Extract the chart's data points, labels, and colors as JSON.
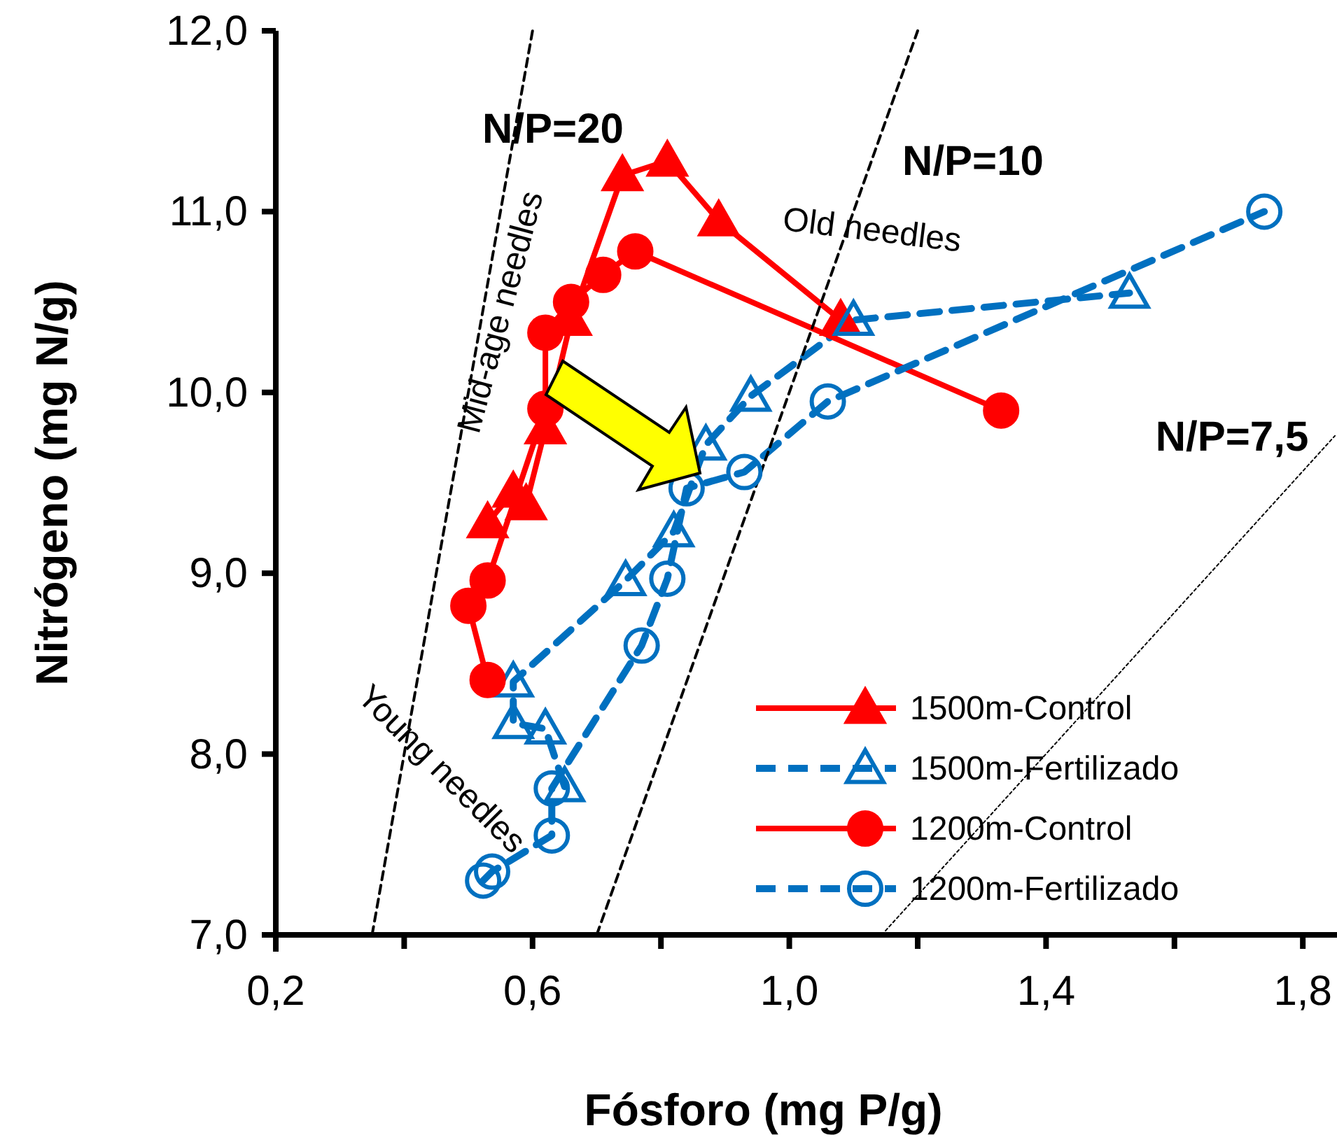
{
  "chart_data": {
    "type": "line",
    "xlabel": "Fósforo (mg P/g)",
    "ylabel": "Nitrógeno (mg N/g)",
    "xlim": [
      0.2,
      1.85
    ],
    "xticks": [
      {
        "value": 0.2,
        "label": "0,2"
      },
      {
        "value": 0.4,
        "label": null
      },
      {
        "value": 0.6,
        "label": "0,6"
      },
      {
        "value": 0.8,
        "label": null
      },
      {
        "value": 1.0,
        "label": "1,0"
      },
      {
        "value": 1.2,
        "label": null
      },
      {
        "value": 1.4,
        "label": "1,4"
      },
      {
        "value": 1.6,
        "label": null
      },
      {
        "value": 1.8,
        "label": "1,8"
      }
    ],
    "ylim": [
      7,
      12
    ],
    "yticks": [
      {
        "value": 7,
        "label": "7,0"
      },
      {
        "value": 8,
        "label": "8,0"
      },
      {
        "value": 9,
        "label": "9,0"
      },
      {
        "value": 10,
        "label": "10,0"
      },
      {
        "value": 11,
        "label": "11,0"
      },
      {
        "value": 12,
        "label": "12,0"
      }
    ],
    "grid": false,
    "legend": "bottom right",
    "series": [
      {
        "name": "1500m-Control",
        "color": "#ff0000",
        "marker": "triangle",
        "line_style": "solid",
        "x": [
          0.53,
          0.57,
          0.59,
          0.62,
          0.66,
          0.74,
          0.81,
          0.89,
          1.08
        ],
        "values": [
          9.28,
          9.45,
          9.38,
          9.8,
          10.4,
          11.2,
          11.28,
          10.95,
          10.4
        ]
      },
      {
        "name": "1500m-Fertilizado",
        "color": "#0070c0",
        "marker": "triangle",
        "line_style": "dashed",
        "x": [
          0.65,
          0.62,
          0.57,
          0.57,
          0.745,
          0.82,
          0.87,
          0.94,
          1.1,
          1.53
        ],
        "values": [
          7.82,
          8.14,
          8.17,
          8.4,
          8.96,
          9.23,
          9.71,
          9.98,
          10.4,
          10.55
        ]
      },
      {
        "name": "1200m-Control",
        "color": "#ff0000",
        "marker": "circle",
        "line_style": "solid",
        "x": [
          0.53,
          0.5,
          0.53,
          0.62,
          0.62,
          0.66,
          0.71,
          0.76,
          1.33
        ],
        "values": [
          8.41,
          8.82,
          8.96,
          9.91,
          10.33,
          10.5,
          10.65,
          10.78,
          9.9
        ]
      },
      {
        "name": "1200m-Fertilizado",
        "color": "#0070c0",
        "marker": "circle",
        "line_style": "dashed",
        "x": [
          0.523,
          0.537,
          0.63,
          0.63,
          0.77,
          0.81,
          0.84,
          0.93,
          1.06,
          1.74
        ],
        "values": [
          7.3,
          7.35,
          7.55,
          7.81,
          8.6,
          8.97,
          9.47,
          9.56,
          9.95,
          11.0
        ]
      },
      {
        "color": "#000000",
        "marker": "none",
        "line_style": "dashed",
        "x": [
          0.35,
          0.6
        ],
        "values": [
          7,
          12
        ]
      },
      {
        "color": "#000000",
        "marker": "none",
        "line_style": "dashed",
        "x": [
          0.7,
          1.2
        ],
        "values": [
          7,
          12
        ]
      },
      {
        "color": "#000000",
        "marker": "none",
        "line_style": "dotted",
        "x": [
          1.144,
          1.85
        ],
        "values": [
          7,
          9.76
        ]
      }
    ],
    "annotations": [
      "N/P=20",
      "N/P=10",
      "N/P=7,5",
      "Old needles",
      "Mid-age needles",
      "Young needles"
    ]
  }
}
